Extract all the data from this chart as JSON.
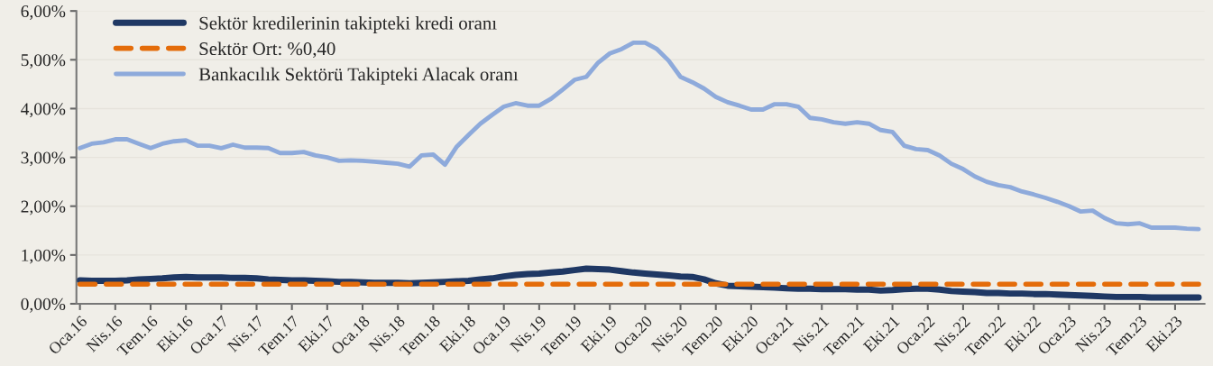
{
  "chart_data": {
    "type": "line",
    "categories": [
      "Oca.16",
      null,
      null,
      "Nis.16",
      null,
      null,
      "Tem.16",
      null,
      null,
      "Eki.16",
      null,
      null,
      "Oca.17",
      null,
      null,
      "Nis.17",
      null,
      null,
      "Tem.17",
      null,
      null,
      "Eki.17",
      null,
      null,
      "Oca.18",
      null,
      null,
      "Nis.18",
      null,
      null,
      "Tem.18",
      null,
      null,
      "Eki.18",
      null,
      null,
      "Oca.19",
      null,
      null,
      "Nis.19",
      null,
      null,
      "Tem.19",
      null,
      null,
      "Eki.19",
      null,
      null,
      "Oca.20",
      null,
      null,
      "Nis.20",
      null,
      null,
      "Tem.20",
      null,
      null,
      "Eki.20",
      null,
      null,
      "Oca.21",
      null,
      null,
      "Nis.21",
      null,
      null,
      "Tem.21",
      null,
      null,
      "Eki.21",
      null,
      null,
      "Oca.22",
      null,
      null,
      "Nis.22",
      null,
      null,
      "Tem.22",
      null,
      null,
      "Eki.22",
      null,
      null,
      "Oca.23",
      null,
      null,
      "Nis.23",
      null,
      null,
      "Tem.23",
      null,
      null,
      "Eki.23",
      null,
      null
    ],
    "series": [
      {
        "name": "Sektör kredilerinin takipteki kredi oranı",
        "color": "#1f3864",
        "line_style": "solid",
        "values": [
          0.48,
          0.47,
          0.47,
          0.47,
          0.48,
          0.5,
          0.51,
          0.52,
          0.54,
          0.55,
          0.54,
          0.54,
          0.54,
          0.53,
          0.53,
          0.52,
          0.5,
          0.49,
          0.48,
          0.48,
          0.47,
          0.46,
          0.45,
          0.45,
          0.44,
          0.43,
          0.43,
          0.43,
          0.42,
          0.43,
          0.44,
          0.45,
          0.46,
          0.47,
          0.5,
          0.52,
          0.56,
          0.59,
          0.61,
          0.62,
          0.64,
          0.66,
          0.69,
          0.72,
          0.71,
          0.7,
          0.67,
          0.64,
          0.62,
          0.6,
          0.58,
          0.56,
          0.55,
          0.5,
          0.42,
          0.37,
          0.36,
          0.35,
          0.34,
          0.33,
          0.32,
          0.31,
          0.31,
          0.3,
          0.3,
          0.3,
          0.29,
          0.29,
          0.27,
          0.28,
          0.3,
          0.31,
          0.31,
          0.29,
          0.26,
          0.25,
          0.24,
          0.22,
          0.22,
          0.21,
          0.21,
          0.2,
          0.2,
          0.19,
          0.18,
          0.17,
          0.16,
          0.15,
          0.14,
          0.14,
          0.14,
          0.13,
          0.13,
          0.13,
          0.13,
          0.13
        ]
      },
      {
        "name": "Sektör Ort: %0,40",
        "color": "#e46c0a",
        "line_style": "dashed",
        "values": [
          0.4,
          0.4,
          0.4,
          0.4,
          0.4,
          0.4,
          0.4,
          0.4,
          0.4,
          0.4,
          0.4,
          0.4,
          0.4,
          0.4,
          0.4,
          0.4,
          0.4,
          0.4,
          0.4,
          0.4,
          0.4,
          0.4,
          0.4,
          0.4,
          0.4,
          0.4,
          0.4,
          0.4,
          0.4,
          0.4,
          0.4,
          0.4,
          0.4,
          0.4,
          0.4,
          0.4,
          0.4,
          0.4,
          0.4,
          0.4,
          0.4,
          0.4,
          0.4,
          0.4,
          0.4,
          0.4,
          0.4,
          0.4,
          0.4,
          0.4,
          0.4,
          0.4,
          0.4,
          0.4,
          0.4,
          0.4,
          0.4,
          0.4,
          0.4,
          0.4,
          0.4,
          0.4,
          0.4,
          0.4,
          0.4,
          0.4,
          0.4,
          0.4,
          0.4,
          0.4,
          0.4,
          0.4,
          0.4,
          0.4,
          0.4,
          0.4,
          0.4,
          0.4,
          0.4,
          0.4,
          0.4,
          0.4,
          0.4,
          0.4,
          0.4,
          0.4,
          0.4,
          0.4,
          0.4,
          0.4,
          0.4,
          0.4,
          0.4,
          0.4,
          0.4,
          0.4
        ]
      },
      {
        "name": "Bankacılık Sektörü Takipteki Alacak oranı",
        "color": "#8eaadb",
        "line_style": "solid",
        "values": [
          3.19,
          3.28,
          3.31,
          3.37,
          3.37,
          3.28,
          3.19,
          3.28,
          3.33,
          3.35,
          3.24,
          3.24,
          3.19,
          3.26,
          3.2,
          3.2,
          3.19,
          3.09,
          3.09,
          3.11,
          3.04,
          3.0,
          2.93,
          2.94,
          2.93,
          2.91,
          2.89,
          2.87,
          2.81,
          3.04,
          3.06,
          2.85,
          3.22,
          3.46,
          3.69,
          3.87,
          4.04,
          4.11,
          4.06,
          4.06,
          4.2,
          4.39,
          4.59,
          4.65,
          4.94,
          5.13,
          5.22,
          5.35,
          5.35,
          5.22,
          4.98,
          4.65,
          4.54,
          4.41,
          4.24,
          4.13,
          4.06,
          3.98,
          3.98,
          4.09,
          4.09,
          4.04,
          3.81,
          3.78,
          3.72,
          3.69,
          3.72,
          3.69,
          3.56,
          3.52,
          3.24,
          3.17,
          3.15,
          3.04,
          2.87,
          2.76,
          2.61,
          2.5,
          2.43,
          2.39,
          2.3,
          2.24,
          2.17,
          2.09,
          2.0,
          1.89,
          1.91,
          1.76,
          1.65,
          1.63,
          1.65,
          1.56,
          1.56,
          1.56,
          1.54,
          1.53
        ]
      }
    ],
    "ylim": [
      0,
      6
    ],
    "yticks": [
      {
        "value": 0,
        "label": "0,00%"
      },
      {
        "value": 1,
        "label": "1,00%"
      },
      {
        "value": 2,
        "label": "2,00%"
      },
      {
        "value": 3,
        "label": "3,00%"
      },
      {
        "value": 4,
        "label": "4,00%"
      },
      {
        "value": 5,
        "label": "5,00%"
      },
      {
        "value": 6,
        "label": "6,00%"
      }
    ],
    "grid": "y",
    "legend": "top left"
  }
}
